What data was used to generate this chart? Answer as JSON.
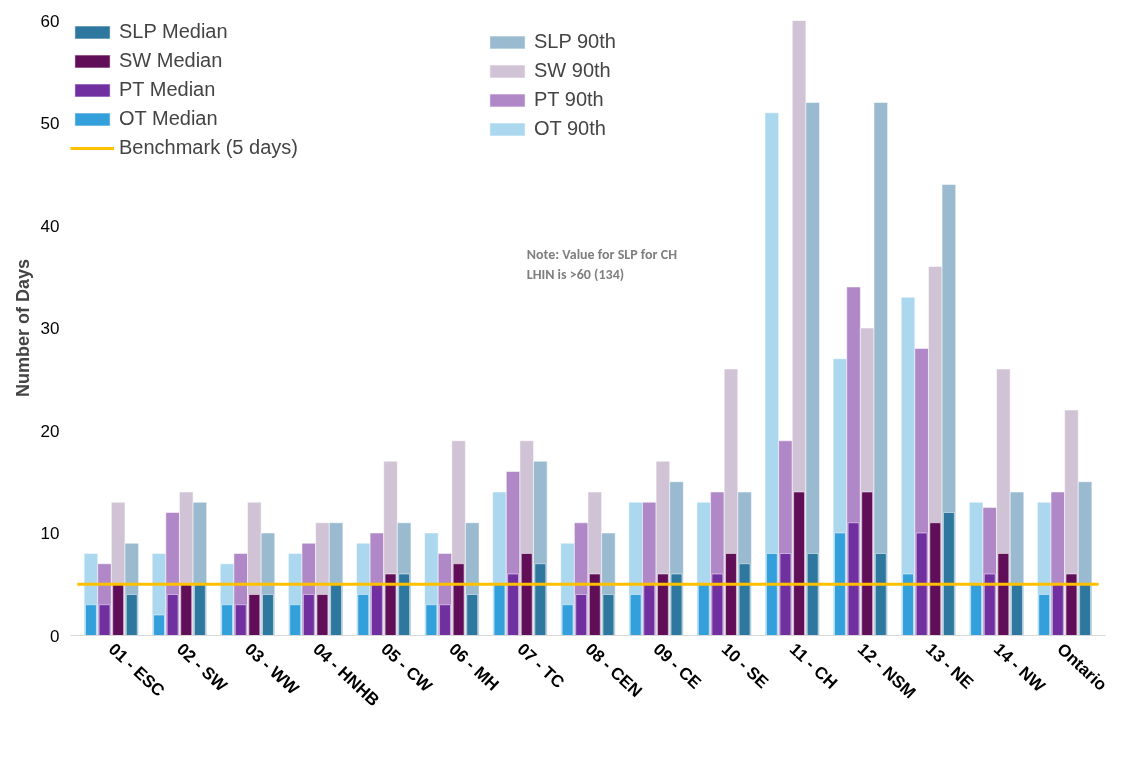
{
  "chart_data": {
    "type": "bar",
    "ylabel": "Number of Days",
    "categories": [
      "01 - ESC",
      "02 - SW",
      "03 - WW",
      "04 - HNHB",
      "05 - CW",
      "06 - MH",
      "07 - TC",
      "08 - CEN",
      "09 - CE",
      "10 - SE",
      "11 - CH",
      "12 - NSM",
      "13 - NE",
      "14 - NW",
      "Ontario"
    ],
    "series": [
      {
        "name": "OT 90th",
        "color": "#abd7ef",
        "values": [
          8,
          8,
          7,
          8,
          9,
          10,
          14,
          9,
          13,
          13,
          51,
          27,
          33,
          13,
          13
        ]
      },
      {
        "name": "PT 90th",
        "color": "#b088c8",
        "values": [
          7,
          12,
          8,
          9,
          10,
          8,
          16,
          11,
          13,
          14,
          19,
          34,
          28,
          12.5,
          14
        ]
      },
      {
        "name": "SW 90th",
        "color": "#d1c3d6",
        "values": [
          13,
          14,
          13,
          11,
          17,
          19,
          19,
          14,
          17,
          26,
          60,
          30,
          36,
          26,
          22
        ]
      },
      {
        "name": "SLP 90th",
        "color": "#9abbcf",
        "values": [
          9,
          13,
          10,
          11,
          11,
          11,
          17,
          10,
          15,
          14,
          52,
          52,
          44,
          14,
          15
        ]
      },
      {
        "name": "OT Median",
        "color": "#339fdb",
        "values": [
          3,
          2,
          3,
          3,
          4,
          3,
          5,
          3,
          4,
          5,
          8,
          10,
          6,
          5,
          4
        ]
      },
      {
        "name": "PT Median",
        "color": "#7030a0",
        "values": [
          3,
          4,
          3,
          4,
          5,
          3,
          6,
          4,
          5,
          6,
          8,
          11,
          10,
          6,
          5
        ]
      },
      {
        "name": "SW Median",
        "color": "#600e58",
        "values": [
          5,
          5,
          4,
          4,
          6,
          7,
          8,
          6,
          6,
          8,
          14,
          14,
          11,
          8,
          6
        ]
      },
      {
        "name": "SLP Median",
        "color": "#2e779e",
        "values": [
          4,
          5,
          4,
          5,
          6,
          4,
          7,
          4,
          6,
          7,
          8,
          8,
          12,
          5,
          5
        ]
      }
    ],
    "ref_lines": [
      {
        "axis": "y",
        "value": 5,
        "label": "Benchmark (5 days)",
        "color": "#ffc000"
      }
    ],
    "annotations": [
      "Note: Value for SLP for CH\nLHIN is >60 (134)"
    ],
    "ylim": [
      0,
      60
    ],
    "yticks": [
      0,
      10,
      20,
      30,
      40,
      50,
      60
    ],
    "grid": false,
    "legend": "top left"
  }
}
